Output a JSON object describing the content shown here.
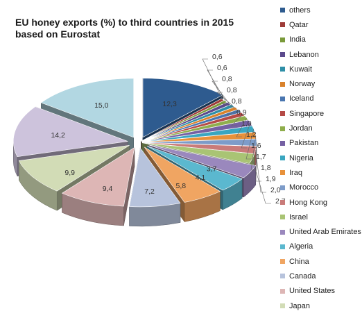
{
  "chart_data": {
    "type": "pie",
    "title": "EU honey exports (%) to third countries in 2015 based on Eurostat",
    "series": [
      {
        "name": "others",
        "value": 12.3,
        "label": "12,3",
        "color": "#2e5b8f"
      },
      {
        "name": "Qatar",
        "value": 0.6,
        "label": "0,6",
        "color": "#9e3b38"
      },
      {
        "name": "India",
        "value": 0.6,
        "label": "0,6",
        "color": "#7a9a3a"
      },
      {
        "name": "Lebanon",
        "value": 0.8,
        "label": "0,8",
        "color": "#5b4a8c"
      },
      {
        "name": "Kuwait",
        "value": 0.8,
        "label": "0,8",
        "color": "#2f8fa7"
      },
      {
        "name": "Norway",
        "value": 0.8,
        "label": "0,8",
        "color": "#d9822b"
      },
      {
        "name": "Iceland",
        "value": 0.9,
        "label": "0,9",
        "color": "#4a76b0"
      },
      {
        "name": "Singapore",
        "value": 1.0,
        "label": "1,0",
        "color": "#b54a46"
      },
      {
        "name": "Jordan",
        "value": 1.2,
        "label": "1,2",
        "color": "#8fae4c"
      },
      {
        "name": "Pakistan",
        "value": 1.6,
        "label": "1,6",
        "color": "#7560a3"
      },
      {
        "name": "Nigeria",
        "value": 1.7,
        "label": "1,7",
        "color": "#3aa6c0"
      },
      {
        "name": "Iraq",
        "value": 1.8,
        "label": "1,8",
        "color": "#e8913a"
      },
      {
        "name": "Morocco",
        "value": 1.9,
        "label": "1,9",
        "color": "#7d9cc9"
      },
      {
        "name": "Hong Kong",
        "value": 2.0,
        "label": "2,0",
        "color": "#c97b79"
      },
      {
        "name": "Israel",
        "value": 2.7,
        "label": "2,7",
        "color": "#a9c474"
      },
      {
        "name": "United Arab Emirates",
        "value": 3.7,
        "label": "3,7",
        "color": "#9a88bd"
      },
      {
        "name": "Algeria",
        "value": 4.1,
        "label": "4,1",
        "color": "#5bb8cf"
      },
      {
        "name": "China",
        "value": 5.8,
        "label": "5,8",
        "color": "#f0a562"
      },
      {
        "name": "Canada",
        "value": 7.2,
        "label": "7,2",
        "color": "#b7c3dc"
      },
      {
        "name": "United States",
        "value": 9.4,
        "label": "9,4",
        "color": "#ddb6b5"
      },
      {
        "name": "Japan",
        "value": 9.9,
        "label": "9,9",
        "color": "#d2dcb6"
      },
      {
        "name": "",
        "value": 14.2,
        "label": "14,2",
        "color": "#cdc3dc"
      },
      {
        "name": "",
        "value": 15.0,
        "label": "15,0",
        "color": "#b2d7e2"
      }
    ],
    "legend_order": [
      "others",
      "Qatar",
      "India",
      "Lebanon",
      "Kuwait",
      "Norway",
      "Iceland",
      "Singapore",
      "Jordan",
      "Pakistan",
      "Nigeria",
      "Iraq",
      "Morocco",
      "Hong Kong",
      "Israel",
      "United Arab Emirates",
      "Algeria",
      "China",
      "Canada",
      "United States",
      "Japan"
    ],
    "legend_position": "right",
    "style": "3d exploded pie"
  }
}
